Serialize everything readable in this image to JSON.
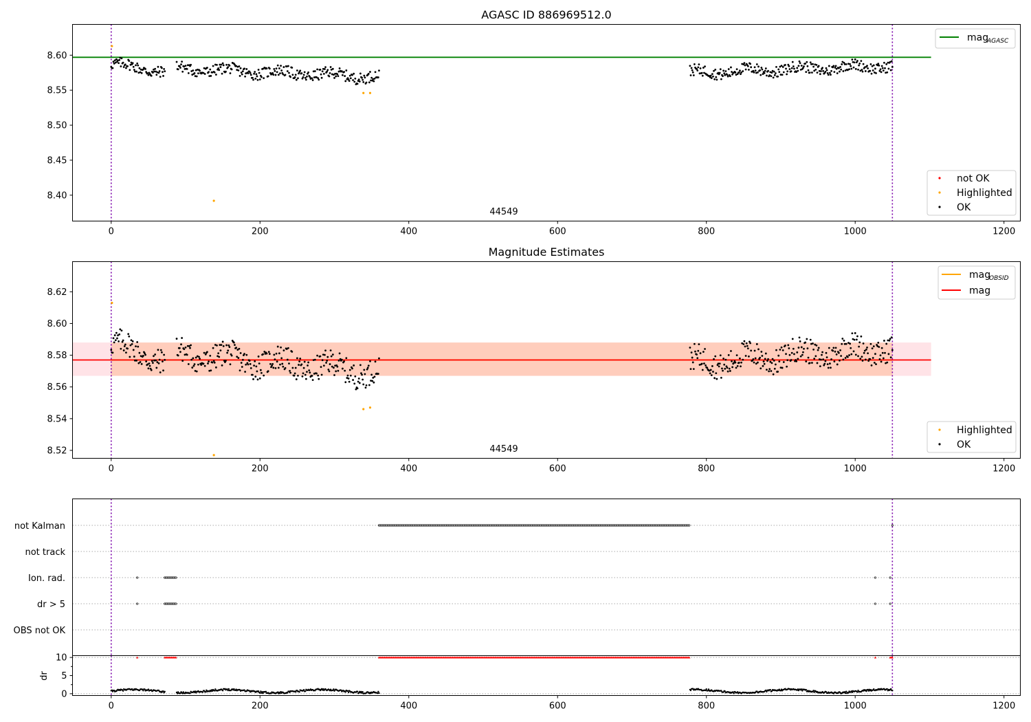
{
  "chart_data": [
    {
      "type": "scatter",
      "panel": "top",
      "title": "AGASC ID 886969512.0",
      "xlim": [
        -52,
        1222
      ],
      "ylim": [
        8.363,
        8.644
      ],
      "xticks": [
        0,
        200,
        400,
        600,
        800,
        1000,
        1200
      ],
      "yticks": [
        8.4,
        8.45,
        8.5,
        8.55,
        8.6
      ],
      "ytick_labels": [
        "8.40",
        "8.45",
        "8.50",
        "8.55",
        "8.60"
      ],
      "obsid_label": "44549",
      "obsid_label_x": 525,
      "epoch_lines_x": [
        0,
        1050
      ],
      "mag_agasc": 8.597,
      "mag_agasc_xrange": [
        -52,
        1102
      ],
      "segments": [
        {
          "x0": 0,
          "x1": 72,
          "base": 8.582,
          "slope": -0.01,
          "amp": 0.008
        },
        {
          "x0": 88,
          "x1": 360,
          "base": 8.575,
          "slope": -0.012,
          "amp": 0.008
        },
        {
          "x0": 778,
          "x1": 1050,
          "base": 8.58,
          "slope": 0.01,
          "amp": 0.008
        }
      ],
      "highlighted_points": [
        [
          1,
          8.613
        ],
        [
          138,
          8.392
        ],
        [
          339,
          8.546
        ],
        [
          348,
          8.546
        ]
      ],
      "not_ok_points": [],
      "legend_top": {
        "label": "mag",
        "sub": "AGASC",
        "color": "#008000"
      },
      "legend_bottom": [
        {
          "label": "not OK",
          "color": "#ff0000"
        },
        {
          "label": "Highlighted",
          "color": "#ffa500"
        },
        {
          "label": "OK",
          "color": "#000000"
        }
      ]
    },
    {
      "type": "scatter",
      "panel": "middle",
      "title": "Magnitude Estimates",
      "xlim": [
        -52,
        1222
      ],
      "ylim": [
        8.515,
        8.639
      ],
      "xticks": [
        0,
        200,
        400,
        600,
        800,
        1000,
        1200
      ],
      "yticks": [
        8.52,
        8.54,
        8.56,
        8.58,
        8.6,
        8.62
      ],
      "ytick_labels": [
        "8.52",
        "8.54",
        "8.56",
        "8.58",
        "8.60",
        "8.62"
      ],
      "obsid_label": "44549",
      "obsid_label_x": 525,
      "epoch_lines_x": [
        0,
        1050
      ],
      "mag": 8.577,
      "mag_band": [
        8.567,
        8.588
      ],
      "mag_xrange": [
        -52,
        1102
      ],
      "mag_obsid": 8.577,
      "mag_obsid_band": [
        8.567,
        8.588
      ],
      "mag_obsid_xrange": [
        0,
        1050
      ],
      "highlighted_points": [
        [
          1,
          8.613
        ],
        [
          138,
          8.517
        ],
        [
          339,
          8.546
        ],
        [
          348,
          8.547
        ]
      ],
      "legend_top": [
        {
          "label": "mag",
          "sub": "OBSID",
          "color": "#ffa500"
        },
        {
          "label": "mag",
          "sub": "",
          "color": "#ff0000"
        }
      ],
      "legend_bottom": [
        {
          "label": "Highlighted",
          "color": "#ffa500"
        },
        {
          "label": "OK",
          "color": "#000000"
        }
      ]
    },
    {
      "type": "scatter",
      "panel": "flags",
      "xlim": [
        -52,
        1222
      ],
      "categories": [
        "not Kalman",
        "not track",
        "Ion. rad.",
        "dr > 5",
        "OBS not OK"
      ],
      "flag_ranges": {
        "not Kalman": [
          [
            360,
            778
          ],
          [
            1050,
            1050
          ]
        ],
        "not track": [],
        "Ion. rad.": [
          [
            35,
            35
          ],
          [
            72,
            88
          ],
          [
            1027,
            1027
          ],
          [
            1047,
            1047
          ]
        ],
        "dr > 5": [
          [
            35,
            35
          ],
          [
            72,
            88
          ],
          [
            1027,
            1027
          ],
          [
            1047,
            1047
          ]
        ],
        "OBS not OK": []
      }
    },
    {
      "type": "scatter",
      "panel": "dr",
      "ylabel": "dr",
      "xlim": [
        -52,
        1222
      ],
      "ylim": [
        -0.5,
        10.5
      ],
      "xticks": [
        0,
        200,
        400,
        600,
        800,
        1000,
        1200
      ],
      "yticks": [
        0,
        5,
        10
      ],
      "ytick_labels": [
        "0",
        "5",
        "10"
      ],
      "clipped_value": 10,
      "clipped_ranges": [
        [
          35,
          35
        ],
        [
          72,
          88
        ],
        [
          360,
          778
        ],
        [
          1027,
          1027
        ],
        [
          1047,
          1050
        ]
      ],
      "dr_segments": [
        [
          0,
          72
        ],
        [
          88,
          360
        ],
        [
          778,
          1050
        ]
      ]
    }
  ]
}
